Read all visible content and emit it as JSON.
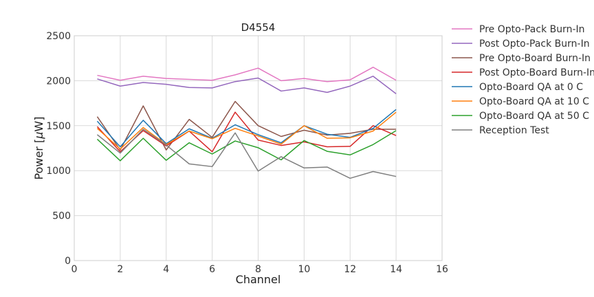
{
  "chart_data": {
    "type": "line",
    "title": "D4554",
    "xlabel": "Channel",
    "ylabel": "Power [",
    "ylabel_mu": "μ",
    "ylabel_unit": "W]",
    "xlim": [
      0,
      16
    ],
    "ylim": [
      0,
      2500
    ],
    "xticks": [
      0,
      2,
      4,
      6,
      8,
      10,
      12,
      14,
      16
    ],
    "yticks": [
      0,
      500,
      1000,
      1500,
      2000,
      2500
    ],
    "grid": true,
    "legend_position": "outside-right",
    "x": [
      1,
      2,
      3,
      4,
      5,
      6,
      7,
      8,
      9,
      10,
      11,
      12,
      13,
      14
    ],
    "series": [
      {
        "name": "Pre Opto-Pack Burn-In",
        "color": "#e377c2",
        "values": [
          2060,
          2005,
          2050,
          2025,
          2015,
          2005,
          2065,
          2140,
          2000,
          2025,
          1990,
          2010,
          2150,
          2005
        ]
      },
      {
        "name": "Post Opto-Pack Burn-In",
        "color": "#9467bd",
        "values": [
          2020,
          1940,
          1980,
          1960,
          1925,
          1920,
          1990,
          2030,
          1885,
          1920,
          1870,
          1940,
          2050,
          1855
        ]
      },
      {
        "name": "Pre Opto-Board Burn-In",
        "color": "#8c564b",
        "values": [
          1600,
          1230,
          1720,
          1230,
          1570,
          1370,
          1770,
          1500,
          1380,
          1450,
          1395,
          1415,
          1460,
          1460
        ]
      },
      {
        "name": "Post Opto-Board Burn-In",
        "color": "#d62728",
        "values": [
          1490,
          1210,
          1445,
          1275,
          1440,
          1210,
          1650,
          1340,
          1280,
          1320,
          1265,
          1270,
          1500,
          1390
        ]
      },
      {
        "name": "Opto-Board QA at 0 C",
        "color": "#1f77b4",
        "values": [
          1550,
          1265,
          1560,
          1300,
          1465,
          1360,
          1510,
          1400,
          1310,
          1500,
          1405,
          1370,
          1470,
          1680
        ]
      },
      {
        "name": "Opto-Board QA at 10 C",
        "color": "#ff7f0e",
        "values": [
          1470,
          1240,
          1480,
          1290,
          1440,
          1355,
          1470,
          1385,
          1295,
          1500,
          1360,
          1365,
          1440,
          1650
        ]
      },
      {
        "name": "Opto-Board QA at 50 C",
        "color": "#2ca02c",
        "values": [
          1350,
          1110,
          1360,
          1115,
          1310,
          1185,
          1330,
          1255,
          1120,
          1335,
          1215,
          1175,
          1290,
          1445
        ]
      },
      {
        "name": "Reception Test",
        "color": "#7f7f7f",
        "values": [
          1400,
          1195,
          1460,
          1285,
          1075,
          1045,
          1420,
          995,
          1155,
          1030,
          1040,
          915,
          990,
          935
        ]
      }
    ]
  }
}
